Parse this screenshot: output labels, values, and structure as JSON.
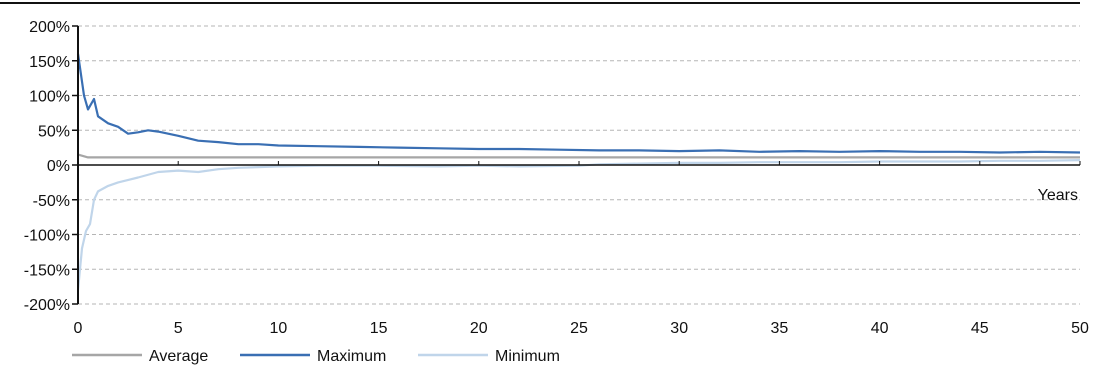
{
  "chart_data": {
    "type": "line",
    "title": "",
    "xlabel": "Years",
    "ylabel": "",
    "xlim": [
      0,
      50
    ],
    "ylim": [
      -200,
      200
    ],
    "x_ticks": [
      0,
      5,
      10,
      15,
      20,
      25,
      30,
      35,
      40,
      45,
      50
    ],
    "x_tick_labels": [
      "0",
      "5",
      "10",
      "15",
      "20",
      "25",
      "30",
      "35",
      "40",
      "45",
      "50"
    ],
    "y_ticks": [
      200,
      150,
      100,
      50,
      0,
      -50,
      -100,
      -150,
      -200
    ],
    "y_tick_labels": [
      "200%",
      "150%",
      "100%",
      "50%",
      "0%",
      "-50%",
      "-100%",
      "-150%",
      "-200%"
    ],
    "grid": "horizontal dashed",
    "legend_position": "bottom",
    "series": [
      {
        "name": "Average",
        "color": "#a6a6a6",
        "points": [
          [
            0,
            15
          ],
          [
            0.5,
            11
          ],
          [
            1,
            11
          ],
          [
            3,
            11
          ],
          [
            5,
            11
          ],
          [
            10,
            11
          ],
          [
            20,
            11
          ],
          [
            30,
            11
          ],
          [
            40,
            11
          ],
          [
            50,
            11
          ]
        ]
      },
      {
        "name": "Maximum",
        "color": "#3a6fb3",
        "points": [
          [
            0,
            160
          ],
          [
            0.3,
            100
          ],
          [
            0.5,
            80
          ],
          [
            0.8,
            95
          ],
          [
            1,
            70
          ],
          [
            1.5,
            60
          ],
          [
            2,
            55
          ],
          [
            2.5,
            45
          ],
          [
            3,
            47
          ],
          [
            3.5,
            50
          ],
          [
            4,
            48
          ],
          [
            4.5,
            45
          ],
          [
            5,
            42
          ],
          [
            6,
            35
          ],
          [
            7,
            33
          ],
          [
            8,
            30
          ],
          [
            9,
            30
          ],
          [
            10,
            28
          ],
          [
            12,
            27
          ],
          [
            14,
            26
          ],
          [
            16,
            25
          ],
          [
            18,
            24
          ],
          [
            20,
            23
          ],
          [
            22,
            23
          ],
          [
            24,
            22
          ],
          [
            26,
            21
          ],
          [
            28,
            21
          ],
          [
            30,
            20
          ],
          [
            32,
            21
          ],
          [
            34,
            19
          ],
          [
            36,
            20
          ],
          [
            38,
            19
          ],
          [
            40,
            20
          ],
          [
            42,
            19
          ],
          [
            44,
            19
          ],
          [
            46,
            18
          ],
          [
            48,
            19
          ],
          [
            50,
            18
          ]
        ]
      },
      {
        "name": "Minimum",
        "color": "#c0d5ea",
        "points": [
          [
            0,
            -180
          ],
          [
            0.2,
            -120
          ],
          [
            0.4,
            -95
          ],
          [
            0.6,
            -85
          ],
          [
            0.8,
            -50
          ],
          [
            1,
            -38
          ],
          [
            1.5,
            -30
          ],
          [
            2,
            -25
          ],
          [
            3,
            -18
          ],
          [
            4,
            -10
          ],
          [
            5,
            -8
          ],
          [
            6,
            -10
          ],
          [
            7,
            -6
          ],
          [
            8,
            -4
          ],
          [
            9,
            -3
          ],
          [
            10,
            -2
          ],
          [
            12,
            -1
          ],
          [
            15,
            -1
          ],
          [
            18,
            -2
          ],
          [
            20,
            -1
          ],
          [
            22,
            -2
          ],
          [
            25,
            -1
          ],
          [
            26,
            1
          ],
          [
            28,
            2
          ],
          [
            30,
            3
          ],
          [
            32,
            3
          ],
          [
            34,
            4
          ],
          [
            36,
            4
          ],
          [
            38,
            4
          ],
          [
            40,
            5
          ],
          [
            42,
            5
          ],
          [
            44,
            5
          ],
          [
            46,
            6
          ],
          [
            48,
            6
          ],
          [
            50,
            7
          ]
        ]
      }
    ]
  }
}
